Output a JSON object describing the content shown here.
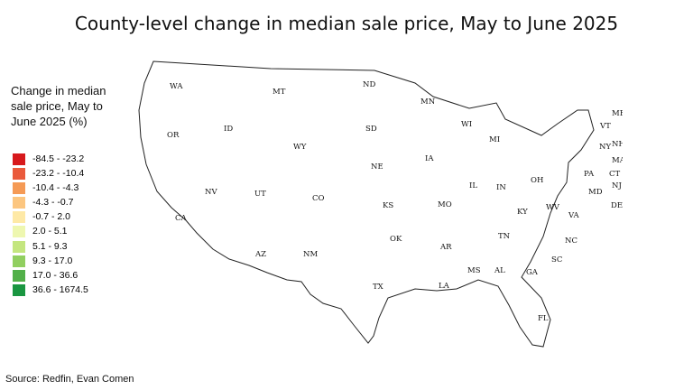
{
  "title": "County-level change in median sale price, May to June 2025",
  "legend": {
    "title": "Change in median sale price, May to June 2025 (%)",
    "items": [
      {
        "label": "-84.5 - -23.2",
        "color": "#d7191c"
      },
      {
        "label": "-23.2 - -10.4",
        "color": "#ea5a3c"
      },
      {
        "label": "-10.4 - -4.3",
        "color": "#f59a55"
      },
      {
        "label": "-4.3 - -0.7",
        "color": "#fcc680"
      },
      {
        "label": "-0.7 - 2.0",
        "color": "#fee9a6"
      },
      {
        "label": "2.0 - 5.1",
        "color": "#eef7b0"
      },
      {
        "label": "5.1 - 9.3",
        "color": "#c4e67f"
      },
      {
        "label": "9.3 - 17.0",
        "color": "#91cf60"
      },
      {
        "label": "17.0 - 36.6",
        "color": "#52b049"
      },
      {
        "label": "36.6 - 1674.5",
        "color": "#1a9641"
      }
    ],
    "no_data_color": "#e6e6e6"
  },
  "states": [
    {
      "abbr": "WA"
    },
    {
      "abbr": "OR"
    },
    {
      "abbr": "CA"
    },
    {
      "abbr": "NV"
    },
    {
      "abbr": "ID"
    },
    {
      "abbr": "MT"
    },
    {
      "abbr": "WY"
    },
    {
      "abbr": "UT"
    },
    {
      "abbr": "AZ"
    },
    {
      "abbr": "CO"
    },
    {
      "abbr": "NM"
    },
    {
      "abbr": "ND"
    },
    {
      "abbr": "SD"
    },
    {
      "abbr": "NE"
    },
    {
      "abbr": "KS"
    },
    {
      "abbr": "OK"
    },
    {
      "abbr": "TX"
    },
    {
      "abbr": "MN"
    },
    {
      "abbr": "IA"
    },
    {
      "abbr": "MO"
    },
    {
      "abbr": "AR"
    },
    {
      "abbr": "LA"
    },
    {
      "abbr": "WI"
    },
    {
      "abbr": "MI"
    },
    {
      "abbr": "IL"
    },
    {
      "abbr": "IN"
    },
    {
      "abbr": "OH"
    },
    {
      "abbr": "KY"
    },
    {
      "abbr": "TN"
    },
    {
      "abbr": "MS"
    },
    {
      "abbr": "AL"
    },
    {
      "abbr": "GA"
    },
    {
      "abbr": "FL"
    },
    {
      "abbr": "SC"
    },
    {
      "abbr": "NC"
    },
    {
      "abbr": "VA"
    },
    {
      "abbr": "WV"
    },
    {
      "abbr": "PA"
    },
    {
      "abbr": "NY"
    },
    {
      "abbr": "VT"
    },
    {
      "abbr": "NH"
    },
    {
      "abbr": "ME"
    },
    {
      "abbr": "MA"
    },
    {
      "abbr": "CT"
    },
    {
      "abbr": "NJ"
    },
    {
      "abbr": "MD"
    },
    {
      "abbr": "DE"
    }
  ],
  "source": "Source: Redfin, Evan Comen"
}
